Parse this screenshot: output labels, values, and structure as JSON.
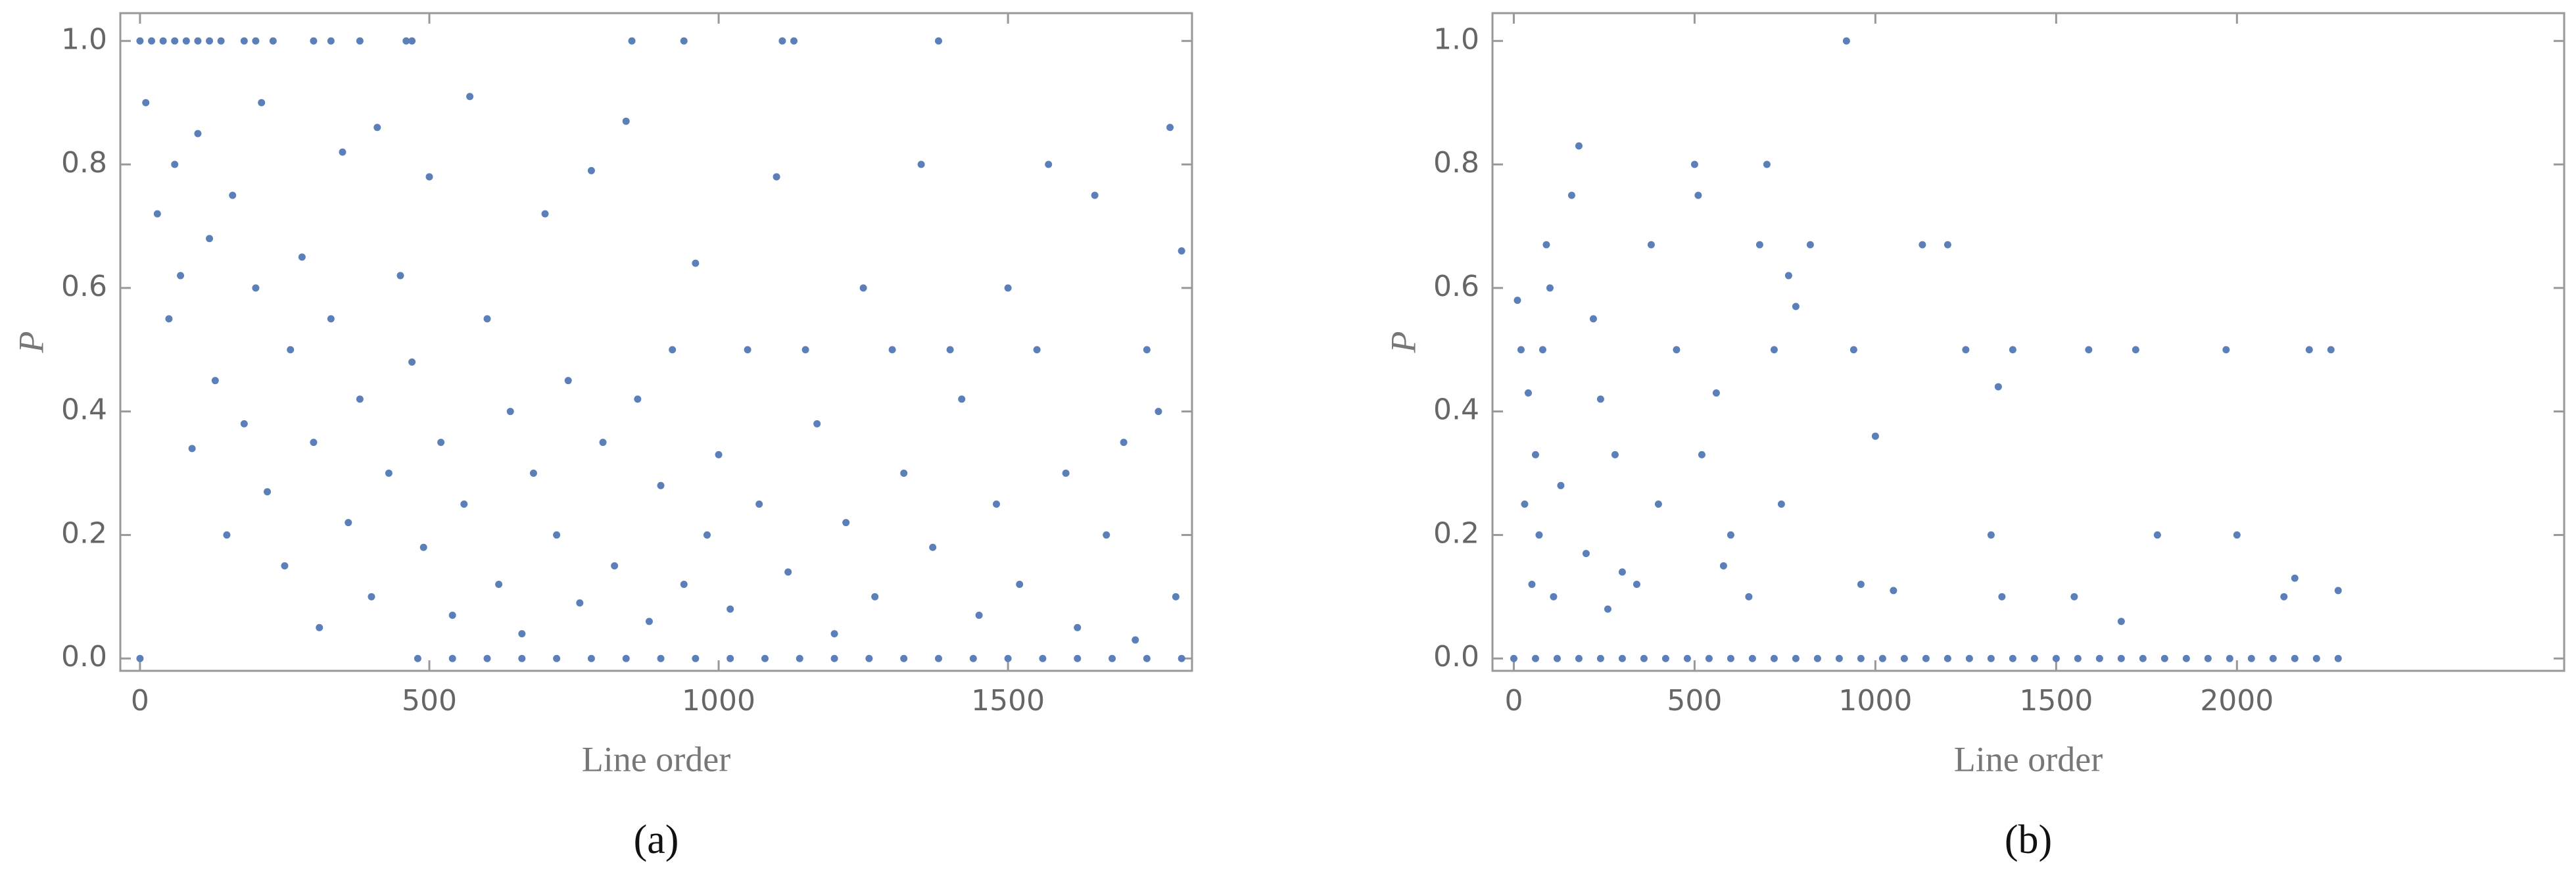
{
  "chart_data": [
    {
      "type": "scatter",
      "caption": "(a)",
      "x_label": "Line order",
      "y_label": "P",
      "color": "#5b7fb8",
      "xlim": [
        -34,
        1818
      ],
      "ylim": [
        -0.02,
        1.045
      ],
      "xticks": [
        0,
        500,
        1000,
        1500
      ],
      "yticks": [
        {
          "value": 0,
          "label": "0.0"
        },
        {
          "value": 0.2,
          "label": "0.2"
        },
        {
          "value": 0.4,
          "label": "0.4"
        },
        {
          "value": 0.6,
          "label": "0.6"
        },
        {
          "value": 0.8,
          "label": "0.8"
        },
        {
          "value": 1,
          "label": "1.0"
        }
      ],
      "grid": false,
      "x": [
        0,
        20,
        40,
        60,
        80,
        100,
        120,
        140,
        180,
        200,
        230,
        300,
        330,
        380,
        460,
        470,
        850,
        940,
        1110,
        1130,
        1380,
        0,
        480,
        540,
        600,
        660,
        720,
        780,
        840,
        900,
        960,
        1020,
        1080,
        1140,
        1200,
        1260,
        1320,
        1380,
        1440,
        1500,
        1560,
        1620,
        1680,
        1740,
        1800,
        10,
        30,
        50,
        60,
        70,
        90,
        100,
        120,
        130,
        150,
        160,
        180,
        200,
        210,
        220,
        250,
        260,
        280,
        300,
        310,
        330,
        350,
        360,
        380,
        400,
        410,
        430,
        450,
        470,
        490,
        500,
        520,
        540,
        560,
        570,
        600,
        620,
        640,
        660,
        680,
        700,
        720,
        740,
        760,
        780,
        800,
        820,
        840,
        860,
        880,
        900,
        920,
        940,
        960,
        980,
        1000,
        1020,
        1050,
        1070,
        1100,
        1120,
        1150,
        1170,
        1200,
        1220,
        1250,
        1270,
        1300,
        1320,
        1350,
        1370,
        1400,
        1420,
        1450,
        1480,
        1500,
        1520,
        1550,
        1570,
        1600,
        1620,
        1650,
        1670,
        1700,
        1720,
        1740,
        1760,
        1780,
        1790,
        1800
      ],
      "values": [
        1,
        1,
        1,
        1,
        1,
        1,
        1,
        1,
        1,
        1,
        1,
        1,
        1,
        1,
        1,
        1,
        1,
        1,
        1,
        1,
        1,
        0,
        0,
        0,
        0,
        0,
        0,
        0,
        0,
        0,
        0,
        0,
        0,
        0,
        0,
        0,
        0,
        0,
        0,
        0,
        0,
        0,
        0,
        0,
        0,
        0.9,
        0.72,
        0.55,
        0.8,
        0.62,
        0.34,
        0.85,
        0.68,
        0.45,
        0.2,
        0.75,
        0.38,
        0.6,
        0.9,
        0.27,
        0.15,
        0.5,
        0.65,
        0.35,
        0.05,
        0.55,
        0.82,
        0.22,
        0.42,
        0.1,
        0.86,
        0.3,
        0.62,
        0.48,
        0.18,
        0.78,
        0.35,
        0.07,
        0.25,
        0.91,
        0.55,
        0.12,
        0.4,
        0.04,
        0.3,
        0.72,
        0.2,
        0.45,
        0.09,
        0.79,
        0.35,
        0.15,
        0.87,
        0.42,
        0.06,
        0.28,
        0.5,
        0.12,
        0.64,
        0.2,
        0.33,
        0.08,
        0.5,
        0.25,
        0.78,
        0.14,
        0.5,
        0.38,
        0.04,
        0.22,
        0.6,
        0.1,
        0.5,
        0.3,
        0.8,
        0.18,
        0.5,
        0.42,
        0.07,
        0.25,
        0.6,
        0.12,
        0.5,
        0.8,
        0.3,
        0.05,
        0.75,
        0.2,
        0.35,
        0.03,
        0.5,
        0.4,
        0.86,
        0.1,
        0.66
      ]
    },
    {
      "type": "scatter",
      "caption": "(b)",
      "x_label": "Line order",
      "y_label": "P",
      "color": "#5b7fb8",
      "xlim": [
        -59,
        2905
      ],
      "ylim": [
        -0.02,
        1.045
      ],
      "xticks": [
        0,
        500,
        1000,
        1500,
        2000
      ],
      "yticks": [
        {
          "value": 0,
          "label": "0.0"
        },
        {
          "value": 0.2,
          "label": "0.2"
        },
        {
          "value": 0.4,
          "label": "0.4"
        },
        {
          "value": 0.6,
          "label": "0.6"
        },
        {
          "value": 0.8,
          "label": "0.8"
        },
        {
          "value": 1,
          "label": "1.0"
        }
      ],
      "grid": false,
      "x": [
        0,
        60,
        120,
        180,
        240,
        300,
        360,
        420,
        480,
        540,
        600,
        660,
        720,
        780,
        840,
        900,
        960,
        1020,
        1080,
        1140,
        1200,
        1260,
        1320,
        1380,
        1440,
        1500,
        1560,
        1620,
        1680,
        1740,
        1800,
        1860,
        1920,
        1980,
        2040,
        2100,
        2160,
        2220,
        2280,
        10,
        20,
        30,
        40,
        50,
        60,
        70,
        80,
        90,
        100,
        110,
        130,
        160,
        180,
        200,
        220,
        240,
        260,
        280,
        300,
        340,
        380,
        400,
        450,
        500,
        510,
        520,
        560,
        580,
        600,
        650,
        680,
        700,
        720,
        740,
        760,
        780,
        820,
        920,
        940,
        960,
        1000,
        1050,
        1130,
        1200,
        1250,
        1320,
        1340,
        1350,
        1380,
        1550,
        1590,
        1680,
        1720,
        1780,
        1970,
        2000,
        2130,
        2160,
        2200,
        2260,
        2280
      ],
      "values": [
        0,
        0,
        0,
        0,
        0,
        0,
        0,
        0,
        0,
        0,
        0,
        0,
        0,
        0,
        0,
        0,
        0,
        0,
        0,
        0,
        0,
        0,
        0,
        0,
        0,
        0,
        0,
        0,
        0,
        0,
        0,
        0,
        0,
        0,
        0,
        0,
        0,
        0,
        0,
        0.58,
        0.5,
        0.25,
        0.43,
        0.12,
        0.33,
        0.2,
        0.5,
        0.67,
        0.6,
        0.1,
        0.28,
        0.75,
        0.83,
        0.17,
        0.55,
        0.42,
        0.08,
        0.33,
        0.14,
        0.12,
        0.67,
        0.25,
        0.5,
        0.8,
        0.75,
        0.33,
        0.43,
        0.15,
        0.2,
        0.1,
        0.67,
        0.8,
        0.5,
        0.25,
        0.62,
        0.57,
        0.67,
        1,
        0.5,
        0.12,
        0.36,
        0.11,
        0.67,
        0.67,
        0.5,
        0.2,
        0.44,
        0.1,
        0.5,
        0.1,
        0.5,
        0.06,
        0.5,
        0.2,
        0.5,
        0.2,
        0.1,
        0.13,
        0.5,
        0.5,
        0.11
      ]
    }
  ]
}
